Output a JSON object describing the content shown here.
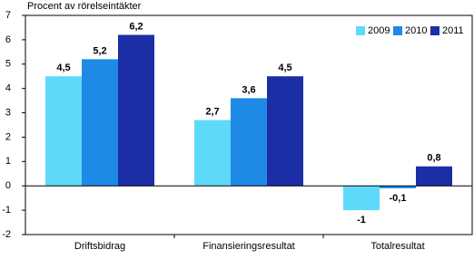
{
  "chart_data": {
    "type": "bar",
    "y_label": "Procent av rörelseintäkter",
    "categories": [
      "Driftsbidrag",
      "Finansieringsresultat",
      "Totalresultat"
    ],
    "series": [
      {
        "name": "2009",
        "color": "#5fd9fa",
        "values": [
          4.5,
          2.7,
          -1
        ],
        "value_labels": [
          "4,5",
          "2,7",
          "-1"
        ]
      },
      {
        "name": "2010",
        "color": "#1e8ae6",
        "values": [
          5.2,
          3.6,
          -0.1
        ],
        "value_labels": [
          "5,2",
          "3,6",
          "-0,1"
        ]
      },
      {
        "name": "2011",
        "color": "#1c2ea6",
        "values": [
          6.2,
          4.5,
          0.8
        ],
        "value_labels": [
          "6,2",
          "4,5",
          "0,8"
        ]
      }
    ],
    "ylim": [
      -2,
      7
    ],
    "yticks": [
      -2,
      -1,
      0,
      1,
      2,
      3,
      4,
      5,
      6,
      7
    ],
    "grid": false,
    "legend": "top-right"
  }
}
